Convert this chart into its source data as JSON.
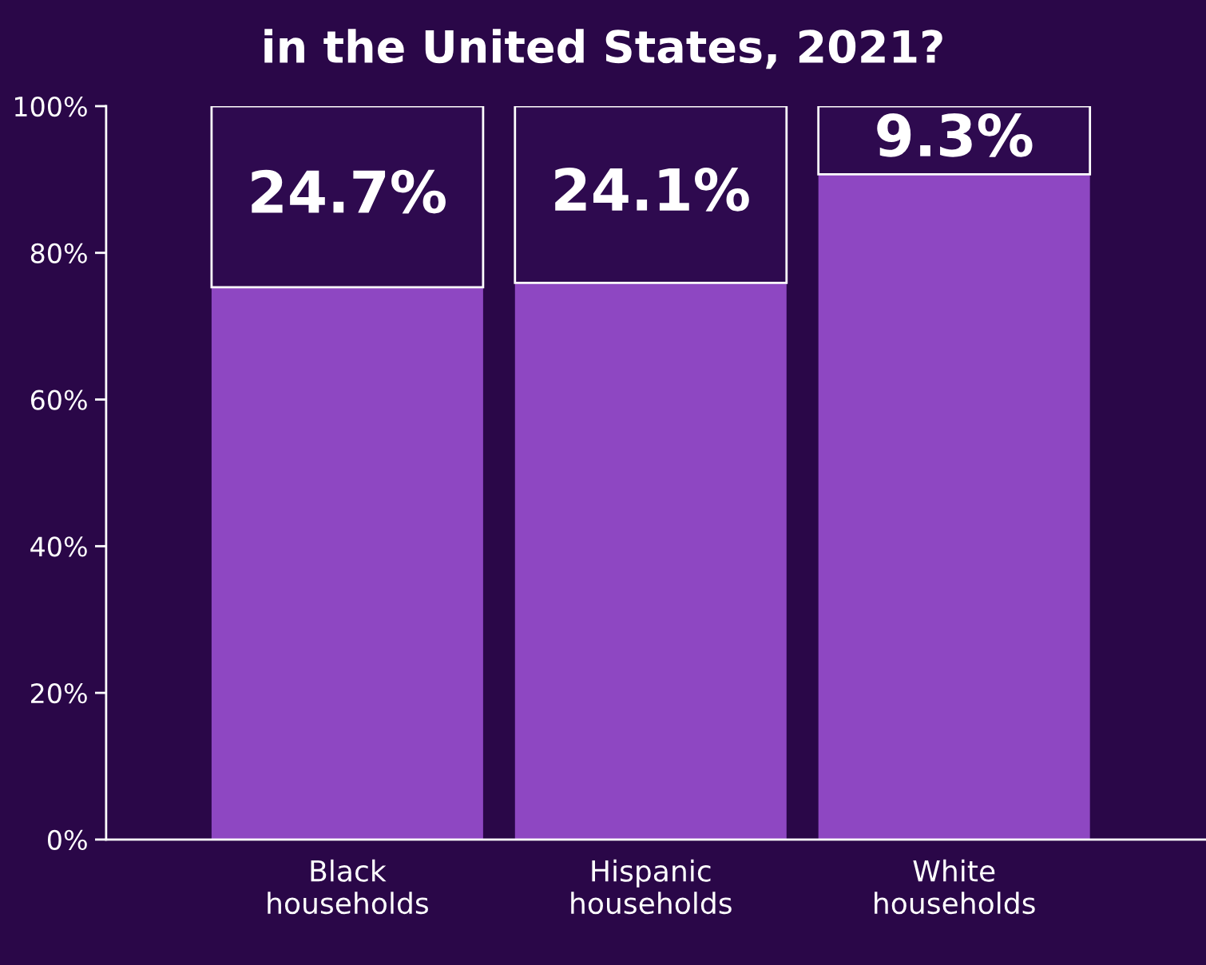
{
  "chart_data": {
    "type": "bar",
    "title": "in the United States, 2021?",
    "stacked": true,
    "categories": [
      "Black\nhouseholds",
      "Hispanic\nhouseholds",
      "White\nhouseholds"
    ],
    "series": [
      {
        "color": "#8e47c2",
        "values": [
          75.3,
          75.9,
          90.7
        ]
      },
      {
        "color": "#2e0a4f",
        "values": [
          24.7,
          24.1,
          9.3
        ],
        "value_labels": [
          "24.7%",
          "24.1%",
          "9.3%"
        ]
      }
    ],
    "ylim": [
      0,
      100
    ],
    "yticks": [
      {
        "value": 0,
        "label": "0%"
      },
      {
        "value": 20,
        "label": "20%"
      },
      {
        "value": 40,
        "label": "40%"
      },
      {
        "value": 60,
        "label": "60%"
      },
      {
        "value": 80,
        "label": "80%"
      },
      {
        "value": 100,
        "label": "100%"
      }
    ],
    "grid": false
  }
}
